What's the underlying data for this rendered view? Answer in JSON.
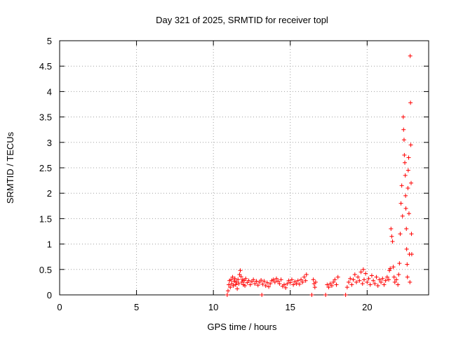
{
  "chart_data": {
    "type": "scatter",
    "title": "Day 321 of 2025, SRMTID for receiver topl",
    "xlabel": "GPS time / hours",
    "ylabel": "SRMTID / TECUs",
    "xlim": [
      0,
      24
    ],
    "ylim": [
      0,
      5
    ],
    "xticks": [
      0,
      5,
      10,
      15,
      20
    ],
    "xtick_labels": [
      "0",
      "5",
      "10",
      "15",
      "20"
    ],
    "yticks": [
      0,
      0.5,
      1,
      1.5,
      2,
      2.5,
      3,
      3.5,
      4,
      4.5,
      5
    ],
    "ytick_labels": [
      "0",
      "0.5",
      "1",
      "1.5",
      "2",
      "2.5",
      "3",
      "3.5",
      "4",
      "4.5",
      "5"
    ],
    "grid": true,
    "marker": "+",
    "series": [
      {
        "name": "SRMTID",
        "color": "#ff0000",
        "points": [
          [
            10.9,
            0.0
          ],
          [
            10.95,
            0.08
          ],
          [
            11.0,
            0.2
          ],
          [
            11.05,
            0.28
          ],
          [
            11.1,
            0.15
          ],
          [
            11.15,
            0.3
          ],
          [
            11.2,
            0.22
          ],
          [
            11.25,
            0.35
          ],
          [
            11.3,
            0.18
          ],
          [
            11.35,
            0.27
          ],
          [
            11.4,
            0.32
          ],
          [
            11.45,
            0.2
          ],
          [
            11.5,
            0.25
          ],
          [
            11.55,
            0.12
          ],
          [
            11.6,
            0.3
          ],
          [
            11.65,
            0.22
          ],
          [
            11.7,
            0.4
          ],
          [
            11.75,
            0.48
          ],
          [
            11.8,
            0.36
          ],
          [
            11.85,
            0.25
          ],
          [
            11.9,
            0.3
          ],
          [
            11.95,
            0.2
          ],
          [
            12.0,
            0.28
          ],
          [
            12.05,
            0.18
          ],
          [
            12.1,
            0.32
          ],
          [
            12.2,
            0.24
          ],
          [
            12.3,
            0.28
          ],
          [
            12.4,
            0.2
          ],
          [
            12.5,
            0.26
          ],
          [
            12.6,
            0.3
          ],
          [
            12.7,
            0.22
          ],
          [
            12.8,
            0.27
          ],
          [
            12.9,
            0.19
          ],
          [
            13.0,
            0.25
          ],
          [
            13.1,
            0.29
          ],
          [
            13.15,
            0.0
          ],
          [
            13.2,
            0.21
          ],
          [
            13.3,
            0.27
          ],
          [
            13.4,
            0.18
          ],
          [
            13.5,
            0.24
          ],
          [
            13.6,
            0.16
          ],
          [
            13.7,
            0.22
          ],
          [
            13.8,
            0.28
          ],
          [
            13.9,
            0.3
          ],
          [
            14.0,
            0.25
          ],
          [
            14.1,
            0.32
          ],
          [
            14.2,
            0.27
          ],
          [
            14.3,
            0.22
          ],
          [
            14.4,
            0.3
          ],
          [
            14.5,
            0.17
          ],
          [
            14.6,
            0.2
          ],
          [
            14.7,
            0.14
          ],
          [
            14.8,
            0.22
          ],
          [
            14.9,
            0.28
          ],
          [
            15.0,
            0.24
          ],
          [
            15.1,
            0.3
          ],
          [
            15.2,
            0.2
          ],
          [
            15.3,
            0.26
          ],
          [
            15.4,
            0.22
          ],
          [
            15.5,
            0.28
          ],
          [
            15.6,
            0.21
          ],
          [
            15.7,
            0.3
          ],
          [
            15.8,
            0.25
          ],
          [
            15.9,
            0.35
          ],
          [
            16.0,
            0.28
          ],
          [
            16.05,
            0.4
          ],
          [
            16.4,
            0.0
          ],
          [
            16.5,
            0.3
          ],
          [
            16.55,
            0.22
          ],
          [
            16.6,
            0.15
          ],
          [
            16.65,
            0.25
          ],
          [
            17.3,
            0.0
          ],
          [
            17.4,
            0.2
          ],
          [
            17.5,
            0.15
          ],
          [
            17.6,
            0.22
          ],
          [
            17.7,
            0.18
          ],
          [
            17.8,
            0.25
          ],
          [
            17.9,
            0.3
          ],
          [
            18.0,
            0.2
          ],
          [
            18.1,
            0.35
          ],
          [
            18.6,
            0.0
          ],
          [
            18.7,
            0.15
          ],
          [
            18.8,
            0.25
          ],
          [
            18.9,
            0.32
          ],
          [
            19.0,
            0.2
          ],
          [
            19.1,
            0.3
          ],
          [
            19.2,
            0.4
          ],
          [
            19.3,
            0.25
          ],
          [
            19.4,
            0.35
          ],
          [
            19.5,
            0.28
          ],
          [
            19.6,
            0.45
          ],
          [
            19.7,
            0.22
          ],
          [
            19.75,
            0.5
          ],
          [
            19.8,
            0.3
          ],
          [
            19.9,
            0.42
          ],
          [
            20.0,
            0.25
          ],
          [
            20.1,
            0.32
          ],
          [
            20.2,
            0.2
          ],
          [
            20.3,
            0.38
          ],
          [
            20.4,
            0.28
          ],
          [
            20.5,
            0.22
          ],
          [
            20.6,
            0.35
          ],
          [
            20.7,
            0.18
          ],
          [
            20.8,
            0.3
          ],
          [
            20.9,
            0.25
          ],
          [
            21.0,
            0.32
          ],
          [
            21.1,
            0.2
          ],
          [
            21.2,
            0.28
          ],
          [
            21.3,
            0.35
          ],
          [
            21.4,
            0.3
          ],
          [
            21.45,
            0.48
          ],
          [
            21.5,
            0.52
          ],
          [
            21.55,
            1.3
          ],
          [
            21.6,
            1.15
          ],
          [
            21.65,
            1.05
          ],
          [
            21.7,
            0.55
          ],
          [
            21.75,
            0.35
          ],
          [
            21.8,
            0.25
          ],
          [
            21.9,
            0.3
          ],
          [
            22.0,
            0.2
          ],
          [
            22.05,
            0.4
          ],
          [
            22.1,
            0.62
          ],
          [
            22.15,
            1.2
          ],
          [
            22.2,
            1.8
          ],
          [
            22.25,
            2.15
          ],
          [
            22.3,
            1.55
          ],
          [
            22.35,
            3.5
          ],
          [
            22.37,
            3.25
          ],
          [
            22.4,
            3.05
          ],
          [
            22.42,
            2.75
          ],
          [
            22.45,
            2.6
          ],
          [
            22.48,
            2.35
          ],
          [
            22.5,
            1.95
          ],
          [
            22.52,
            1.7
          ],
          [
            22.55,
            1.3
          ],
          [
            22.57,
            0.9
          ],
          [
            22.6,
            0.6
          ],
          [
            22.62,
            0.35
          ],
          [
            22.65,
            2.1
          ],
          [
            22.67,
            2.45
          ],
          [
            22.7,
            2.7
          ],
          [
            22.72,
            1.6
          ],
          [
            22.75,
            0.8
          ],
          [
            22.78,
            0.25
          ],
          [
            22.8,
            4.7
          ],
          [
            22.82,
            3.78
          ],
          [
            22.84,
            2.95
          ],
          [
            22.86,
            2.2
          ],
          [
            22.88,
            1.2
          ],
          [
            22.9,
            0.8
          ]
        ]
      }
    ]
  }
}
